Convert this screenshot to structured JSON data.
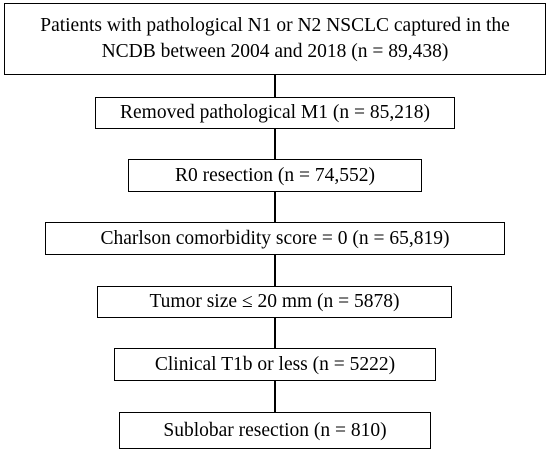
{
  "flowchart": {
    "steps": [
      {
        "label_line1": "Patients with pathological N1 or N2 NSCLC captured in the",
        "label_line2": "NCDB between 2004 and 2018 (n = 89,438)"
      },
      {
        "label": "Removed pathological M1 (n = 85,218)"
      },
      {
        "label": "R0 resection (n = 74,552)"
      },
      {
        "label": "Charlson comorbidity score = 0 (n = 65,819)"
      },
      {
        "label": "Tumor size ≤ 20 mm (n = 5878)"
      },
      {
        "label": "Clinical T1b or less (n = 5222)"
      },
      {
        "label": "Sublobar resection (n = 810)"
      }
    ],
    "colors": {
      "border": "#000000",
      "background": "#ffffff",
      "text": "#000000"
    }
  }
}
